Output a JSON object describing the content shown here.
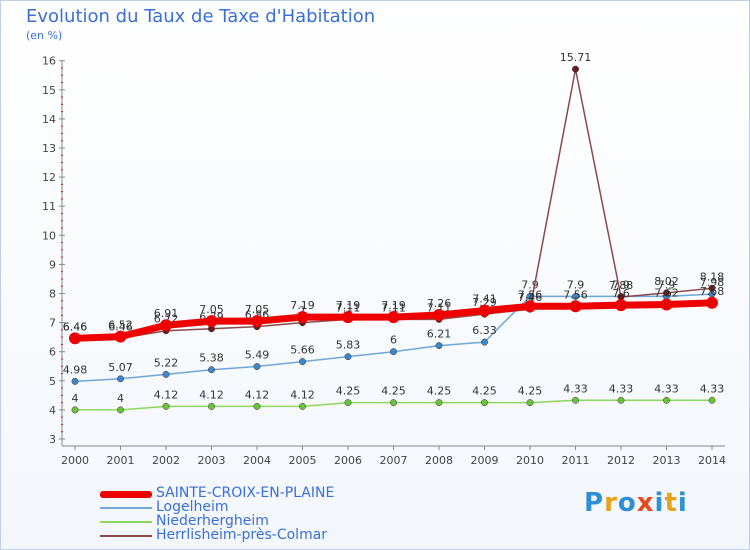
{
  "title": "Evolution du Taux de Taxe d'Habitation",
  "subtitle": "(en %)",
  "logo": {
    "letters": [
      "P",
      "r",
      "o",
      "x",
      "i",
      "t",
      "i"
    ],
    "colors": [
      "#2e8fd6",
      "#e8a21b",
      "#2e8fd6",
      "#e84b1b",
      "#2e8fd6",
      "#e8a21b",
      "#2e8fd6"
    ]
  },
  "chart_data": {
    "type": "line",
    "title": "Evolution du Taux de Taxe d'Habitation",
    "ylabel": "(en %)",
    "xlabel": "",
    "ylim": [
      3,
      16
    ],
    "yticks": [
      "3",
      "4",
      "5",
      "6",
      "7",
      "8",
      "9",
      "10",
      "11",
      "12",
      "13",
      "14",
      "15",
      "16"
    ],
    "categories": [
      "2000",
      "2001",
      "2002",
      "2003",
      "2004",
      "2005",
      "2006",
      "2007",
      "2008",
      "2009",
      "2010",
      "2011",
      "2012",
      "2013",
      "2014"
    ],
    "grid": false,
    "legend_position": "bottom-left",
    "series": [
      {
        "name": "Niederhergheim",
        "color": "#8fd65a",
        "marker": "#6cc23a",
        "values": [
          4,
          4,
          4.12,
          4.12,
          4.12,
          4.12,
          4.25,
          4.25,
          4.25,
          4.25,
          4.25,
          4.33,
          4.33,
          4.33,
          4.33
        ],
        "labels": [
          "4",
          "4",
          "4.12",
          "4.12",
          "4.12",
          "4.12",
          "4.25",
          "4.25",
          "4.25",
          "4.25",
          "4.25",
          "4.33",
          "4.33",
          "4.33",
          "4.33"
        ]
      },
      {
        "name": "Logelheim",
        "color": "#6ea7d8",
        "marker": "#3f86c8",
        "values": [
          4.98,
          5.07,
          5.22,
          5.38,
          5.49,
          5.66,
          5.83,
          6,
          6.21,
          6.33,
          7.9,
          7.9,
          7.9,
          7.9,
          7.98
        ],
        "labels": [
          "4.98",
          "5.07",
          "5.22",
          "5.38",
          "5.49",
          "5.66",
          "5.83",
          "6",
          "6.21",
          "6.33",
          "7.9",
          "7.9",
          "7.9",
          "7.9",
          "7.98"
        ]
      },
      {
        "name": "Herrlisheim-près-Colmar",
        "color": "#8b4a4a",
        "marker": "#6a1a1a",
        "values": [
          6.46,
          6.46,
          6.72,
          6.79,
          6.86,
          7,
          7.11,
          7.11,
          7.11,
          7.29,
          7.46,
          15.71,
          7.88,
          8.02,
          8.18
        ],
        "labels": [
          "6.46",
          "6.46",
          "6.72",
          "6.79",
          "6.86",
          "7",
          "7.11",
          "7.11",
          "7.11",
          "7.29",
          "7.46",
          "15.71",
          "7.88",
          "8.02",
          "8.18"
        ]
      },
      {
        "name": "SAINTE-CROIX-EN-PLAINE",
        "color": "#ee0000",
        "marker": "#ee0000",
        "thick": true,
        "values": [
          6.46,
          6.52,
          6.91,
          7.05,
          7.05,
          7.19,
          7.19,
          7.19,
          7.26,
          7.41,
          7.56,
          7.56,
          7.6,
          7.62,
          7.68
        ],
        "labels": [
          "6.46",
          "6.52",
          "6.91",
          "7.05",
          "7.05",
          "7.19",
          "7.19",
          "7.19",
          "7.26",
          "7.41",
          "7.56",
          "7.56",
          "7.6",
          "7.62",
          "7.68"
        ]
      }
    ]
  },
  "legend": [
    {
      "label": "SAINTE-CROIX-EN-PLAINE",
      "color": "#ee0000",
      "thick": true
    },
    {
      "label": "Logelheim",
      "color": "#6ea7d8",
      "thick": false
    },
    {
      "label": "Niederhergheim",
      "color": "#8fd65a",
      "thick": false
    },
    {
      "label": "Herrlisheim-près-Colmar",
      "color": "#8b4a4a",
      "thick": false
    }
  ]
}
